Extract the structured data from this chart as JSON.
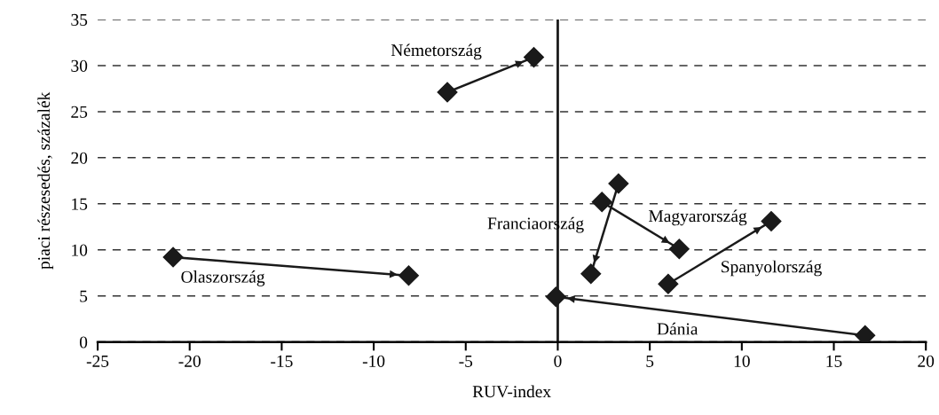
{
  "chart_data": {
    "type": "line",
    "line_style": "solid",
    "xlabel": "RUV-index",
    "ylabel": "piaci részesedés, százalék",
    "xlim": [
      -25,
      20
    ],
    "xticks": [
      -25,
      -20,
      -15,
      -10,
      -5,
      0,
      5,
      10,
      15,
      20
    ],
    "ylim": [
      0,
      35
    ],
    "yticks": [
      0,
      5,
      10,
      15,
      20,
      25,
      30,
      35
    ],
    "grid": "y",
    "marker": "diamond",
    "legend": false,
    "ref_lines": [
      {
        "axis": "x",
        "value": 0,
        "color": "#1a1a1a",
        "line_style": "solid"
      }
    ],
    "series": [
      {
        "name": "Németország",
        "color": "#1a1a1a",
        "x": [
          -6.0,
          -1.3
        ],
        "values": [
          27.1,
          30.9
        ]
      },
      {
        "name": "Olaszország",
        "color": "#1a1a1a",
        "x": [
          -20.9,
          -8.1
        ],
        "values": [
          9.2,
          7.2
        ]
      },
      {
        "name": "Franciaország",
        "color": "#1a1a1a",
        "x": [
          3.3,
          1.8
        ],
        "values": [
          17.2,
          7.4
        ]
      },
      {
        "name": "Magyarország",
        "color": "#1a1a1a",
        "x": [
          2.4,
          6.6
        ],
        "values": [
          15.2,
          10.1
        ]
      },
      {
        "name": "Spanyolország",
        "color": "#1a1a1a",
        "x": [
          6.0,
          11.6
        ],
        "values": [
          6.3,
          13.1
        ]
      },
      {
        "name": "Dánia",
        "color": "#1a1a1a",
        "x": [
          16.7,
          -0.1
        ],
        "values": [
          0.7,
          4.9
        ]
      }
    ]
  }
}
